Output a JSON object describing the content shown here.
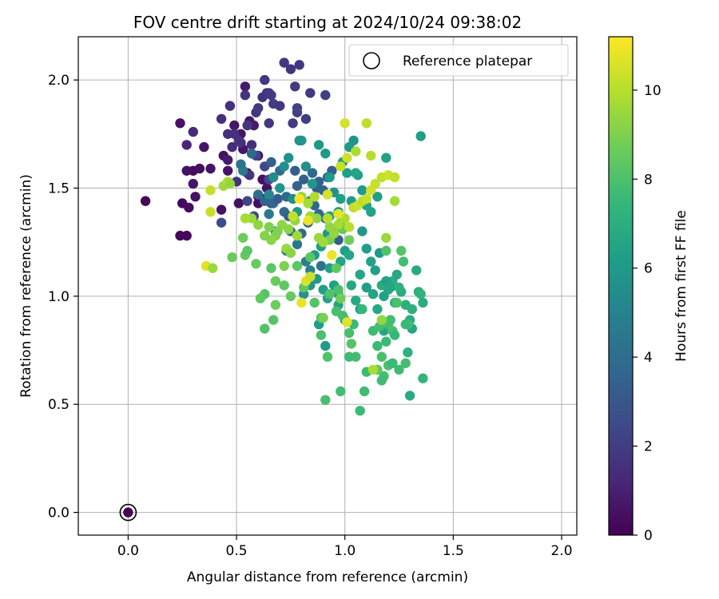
{
  "chart_data": {
    "type": "scatter",
    "title": "FOV centre drift starting at 2024/10/24 09:38:02",
    "xlabel": "Angular distance from reference (arcmin)",
    "ylabel": "Rotation from reference (arcmin)",
    "xlim": [
      -0.23,
      2.07
    ],
    "ylim": [
      -0.105,
      2.2
    ],
    "x_ticks": [
      0.0,
      0.5,
      1.0,
      1.5,
      2.0
    ],
    "y_ticks": [
      0.0,
      0.5,
      1.0,
      1.5,
      2.0
    ],
    "x_tick_labels": [
      "0.0",
      "0.5",
      "1.0",
      "1.5",
      "2.0"
    ],
    "y_tick_labels": [
      "0.0",
      "0.5",
      "1.0",
      "1.5",
      "2.0"
    ],
    "grid": true,
    "legend": {
      "position": "top-right",
      "entries": [
        "Reference platepar"
      ]
    },
    "reference_point": {
      "x": 0.0,
      "y": 0.0,
      "label": "Reference platepar"
    },
    "colorbar": {
      "label": "Hours from first FF file",
      "min": 0,
      "max": 11.2,
      "ticks": [
        0,
        2,
        4,
        6,
        8,
        10
      ],
      "tick_labels": [
        "0",
        "2",
        "4",
        "6",
        "8",
        "10"
      ],
      "colormap": "viridis"
    },
    "points_xyh": [
      [
        0.08,
        1.44,
        0.2
      ],
      [
        0.24,
        1.28,
        0.2
      ],
      [
        0.27,
        1.28,
        0.3
      ],
      [
        0.25,
        1.43,
        0.3
      ],
      [
        0.28,
        1.41,
        0.4
      ],
      [
        0.24,
        1.8,
        0.5
      ],
      [
        0.3,
        1.58,
        0.3
      ],
      [
        0.33,
        1.59,
        0.4
      ],
      [
        0.27,
        1.58,
        0.5
      ],
      [
        0.35,
        1.69,
        0.6
      ],
      [
        0.3,
        1.52,
        0.7
      ],
      [
        0.31,
        1.46,
        0.5
      ],
      [
        0.38,
        1.59,
        0.6
      ],
      [
        0.43,
        1.4,
        0.5
      ],
      [
        0.44,
        1.65,
        0.5
      ],
      [
        0.46,
        1.58,
        0.6
      ],
      [
        0.46,
        1.63,
        0.8
      ],
      [
        0.49,
        1.79,
        0.7
      ],
      [
        0.52,
        1.75,
        0.6
      ],
      [
        0.51,
        1.43,
        0.5
      ],
      [
        0.53,
        1.68,
        0.6
      ],
      [
        0.55,
        1.57,
        0.5
      ],
      [
        0.56,
        1.81,
        0.7
      ],
      [
        0.58,
        1.79,
        0.8
      ],
      [
        0.6,
        1.46,
        0.5
      ],
      [
        0.62,
        1.45,
        0.6
      ],
      [
        0.62,
        1.54,
        0.5
      ],
      [
        0.64,
        1.5,
        0.6
      ],
      [
        0.6,
        1.65,
        0.5
      ],
      [
        0.54,
        1.97,
        0.8
      ],
      [
        0.6,
        1.43,
        0.4
      ],
      [
        0.27,
        1.7,
        1.2
      ],
      [
        0.3,
        1.76,
        1.3
      ],
      [
        0.43,
        1.82,
        1.5
      ],
      [
        0.47,
        1.88,
        1.6
      ],
      [
        0.46,
        1.75,
        1.5
      ],
      [
        0.48,
        1.69,
        1.4
      ],
      [
        0.52,
        1.71,
        1.5
      ],
      [
        0.54,
        1.93,
        1.7
      ],
      [
        0.55,
        1.79,
        1.8
      ],
      [
        0.57,
        1.7,
        1.5
      ],
      [
        0.59,
        1.85,
        1.8
      ],
      [
        0.6,
        1.87,
        1.9
      ],
      [
        0.62,
        1.92,
        1.7
      ],
      [
        0.64,
        1.94,
        1.6
      ],
      [
        0.65,
        1.8,
        1.8
      ],
      [
        0.66,
        1.93,
        2.0
      ],
      [
        0.67,
        1.89,
        2.0
      ],
      [
        0.7,
        1.88,
        1.8
      ],
      [
        0.72,
        2.08,
        1.8
      ],
      [
        0.75,
        2.05,
        1.7
      ],
      [
        0.77,
        1.97,
        1.9
      ],
      [
        0.79,
        2.07,
        1.8
      ],
      [
        0.76,
        1.8,
        2.0
      ],
      [
        0.78,
        1.85,
        2.1
      ],
      [
        0.78,
        1.87,
        2.2
      ],
      [
        0.82,
        1.82,
        2.0
      ],
      [
        0.84,
        1.94,
        1.9
      ],
      [
        0.91,
        1.93,
        2.1
      ],
      [
        0.65,
        1.94,
        1.9
      ],
      [
        0.63,
        2.0,
        1.8
      ],
      [
        0.51,
        1.72,
        1.6
      ],
      [
        0.49,
        1.75,
        1.5
      ],
      [
        0.56,
        1.56,
        1.8
      ],
      [
        0.59,
        1.65,
        2.3
      ],
      [
        0.63,
        1.6,
        2.4
      ],
      [
        0.65,
        1.54,
        2.5
      ],
      [
        0.43,
        1.34,
        2.6
      ],
      [
        0.5,
        1.53,
        1.7
      ],
      [
        0.55,
        1.44,
        2.3
      ],
      [
        0.58,
        1.37,
        2.4
      ],
      [
        0.66,
        1.43,
        2.2
      ],
      [
        0.52,
        1.61,
        4.2
      ],
      [
        0.53,
        1.58,
        4.5
      ],
      [
        0.57,
        1.66,
        3.8
      ],
      [
        0.6,
        1.47,
        4.0
      ],
      [
        0.63,
        1.44,
        3.5
      ],
      [
        0.65,
        1.38,
        4.6
      ],
      [
        0.67,
        1.43,
        3.7
      ],
      [
        0.69,
        1.45,
        3.2
      ],
      [
        0.72,
        1.39,
        3.9
      ],
      [
        0.74,
        1.37,
        3.4
      ],
      [
        0.73,
        1.46,
        3.8
      ],
      [
        0.77,
        1.58,
        3.3
      ],
      [
        0.78,
        1.51,
        3.5
      ],
      [
        0.81,
        1.54,
        3.4
      ],
      [
        0.84,
        1.44,
        3.6
      ],
      [
        0.85,
        1.57,
        3.8
      ],
      [
        0.87,
        1.5,
        3.3
      ],
      [
        0.88,
        1.53,
        3.5
      ],
      [
        0.9,
        1.49,
        3.5
      ],
      [
        0.92,
        1.55,
        3.6
      ],
      [
        0.94,
        1.58,
        3.4
      ],
      [
        0.7,
        1.58,
        3.9
      ],
      [
        0.75,
        1.3,
        3.8
      ],
      [
        0.8,
        1.29,
        3.7
      ],
      [
        0.83,
        1.34,
        3.6
      ],
      [
        0.86,
        1.42,
        3.8
      ],
      [
        0.88,
        1.38,
        3.9
      ],
      [
        0.91,
        1.36,
        3.7
      ],
      [
        0.95,
        1.31,
        3.8
      ],
      [
        0.97,
        1.26,
        3.3
      ],
      [
        0.73,
        1.21,
        4.2
      ],
      [
        0.78,
        1.24,
        4.5
      ],
      [
        0.82,
        1.16,
        4.8
      ],
      [
        0.84,
        1.12,
        4.9
      ],
      [
        0.89,
        1.14,
        4.3
      ],
      [
        0.66,
        1.62,
        3.4
      ],
      [
        0.68,
        1.3,
        4.5
      ],
      [
        0.65,
        1.47,
        5.2
      ],
      [
        0.67,
        1.55,
        5.4
      ],
      [
        0.7,
        1.5,
        5.8
      ],
      [
        0.72,
        1.6,
        5.6
      ],
      [
        0.76,
        1.45,
        5.5
      ],
      [
        0.78,
        1.39,
        5.9
      ],
      [
        0.8,
        1.72,
        6.0
      ],
      [
        0.82,
        1.6,
        5.6
      ],
      [
        0.85,
        1.52,
        5.8
      ],
      [
        0.88,
        1.7,
        5.9
      ],
      [
        0.91,
        1.66,
        6.0
      ],
      [
        0.93,
        1.55,
        6.1
      ],
      [
        0.95,
        1.48,
        5.7
      ],
      [
        0.98,
        1.45,
        6.2
      ],
      [
        0.99,
        1.62,
        6.1
      ],
      [
        1.01,
        1.57,
        6.3
      ],
      [
        1.02,
        1.69,
        6.0
      ],
      [
        1.04,
        1.72,
        5.8
      ],
      [
        1.06,
        1.56,
        6.2
      ],
      [
        1.08,
        1.49,
        6.0
      ],
      [
        1.1,
        1.42,
        6.4
      ],
      [
        1.12,
        1.39,
        6.5
      ],
      [
        1.15,
        1.46,
        6.3
      ],
      [
        1.05,
        1.57,
        6.5
      ],
      [
        1.03,
        1.44,
        6.1
      ],
      [
        0.97,
        1.39,
        6.2
      ],
      [
        0.93,
        1.37,
        6.4
      ],
      [
        0.92,
        1.29,
        5.9
      ],
      [
        0.89,
        1.23,
        6.2
      ],
      [
        0.86,
        1.19,
        6.1
      ],
      [
        0.84,
        1.05,
        5.9
      ],
      [
        0.87,
        1.08,
        6.0
      ],
      [
        0.9,
        1.03,
        6.3
      ],
      [
        0.92,
        0.99,
        6.4
      ],
      [
        0.95,
        1.05,
        6.2
      ],
      [
        0.97,
        1.01,
        6.0
      ],
      [
        0.98,
        1.16,
        6.5
      ],
      [
        1.0,
        1.21,
        6.3
      ],
      [
        1.02,
        1.19,
        6.6
      ],
      [
        1.03,
        1.05,
        6.7
      ],
      [
        1.05,
        0.98,
        6.8
      ],
      [
        1.07,
        1.1,
        6.6
      ],
      [
        1.08,
        1.3,
        5.9
      ],
      [
        1.1,
        1.22,
        6.2
      ],
      [
        1.12,
        1.16,
        6.4
      ],
      [
        1.13,
        1.01,
        6.5
      ],
      [
        1.15,
        0.94,
        6.7
      ],
      [
        1.17,
        1.05,
        6.9
      ],
      [
        1.18,
        0.84,
        6.6
      ],
      [
        1.2,
        1.03,
        6.8
      ],
      [
        1.22,
        1.07,
        7.0
      ],
      [
        1.24,
        1.1,
        6.7
      ],
      [
        1.26,
        1.02,
        6.8
      ],
      [
        1.28,
        0.96,
        7.0
      ],
      [
        1.3,
        0.89,
        6.9
      ],
      [
        1.31,
        0.94,
        7.1
      ],
      [
        1.33,
        1.12,
        6.8
      ],
      [
        1.34,
        1.02,
        7.0
      ],
      [
        1.35,
        1.01,
        7.2
      ],
      [
        1.36,
        0.97,
        6.9
      ],
      [
        1.31,
        0.85,
        6.6
      ],
      [
        1.29,
        0.74,
        7.1
      ],
      [
        1.3,
        0.54,
        6.8
      ],
      [
        1.36,
        0.62,
        7.3
      ],
      [
        1.35,
        1.74,
        6.2
      ],
      [
        1.19,
        1.64,
        6.4
      ],
      [
        0.91,
        0.77,
        6.1
      ],
      [
        0.88,
        0.87,
        6.2
      ],
      [
        0.93,
        1.13,
        6.3
      ],
      [
        0.81,
        1.01,
        5.7
      ],
      [
        0.79,
        1.72,
        5.8
      ],
      [
        0.74,
        1.64,
        5.7
      ],
      [
        0.97,
        0.96,
        6.5
      ],
      [
        1.0,
        0.89,
        6.6
      ],
      [
        1.16,
        1.2,
        6.0
      ],
      [
        1.14,
        1.12,
        6.3
      ],
      [
        1.19,
        1.07,
        6.4
      ],
      [
        1.21,
        1.04,
        6.6
      ],
      [
        1.23,
        0.97,
        7.0
      ],
      [
        1.25,
        1.04,
        7.1
      ],
      [
        1.18,
        1.0,
        6.4
      ],
      [
        1.1,
        1.04,
        6.3
      ],
      [
        1.07,
        0.94,
        6.2
      ],
      [
        0.99,
        0.91,
        7.8
      ],
      [
        1.02,
        0.83,
        7.9
      ],
      [
        1.04,
        0.87,
        7.6
      ],
      [
        1.08,
        0.94,
        7.5
      ],
      [
        1.13,
        0.84,
        7.7
      ],
      [
        1.16,
        0.86,
        7.8
      ],
      [
        1.19,
        0.79,
        7.6
      ],
      [
        1.2,
        0.87,
        7.8
      ],
      [
        1.22,
        0.84,
        7.9
      ],
      [
        1.23,
        0.82,
        7.5
      ],
      [
        1.15,
        0.77,
        7.6
      ],
      [
        1.17,
        0.72,
        7.9
      ],
      [
        1.2,
        0.68,
        8.0
      ],
      [
        1.18,
        0.63,
        7.8
      ],
      [
        1.17,
        0.61,
        7.7
      ],
      [
        1.22,
        0.69,
        7.6
      ],
      [
        1.25,
        0.66,
        7.7
      ],
      [
        1.28,
        0.69,
        7.8
      ],
      [
        1.29,
        0.87,
        7.9
      ],
      [
        1.1,
        0.65,
        7.6
      ],
      [
        1.05,
        0.72,
        7.8
      ],
      [
        1.02,
        0.72,
        7.7
      ],
      [
        0.96,
        0.93,
        7.9
      ],
      [
        0.97,
        1.03,
        8.0
      ],
      [
        0.93,
        1.01,
        8.1
      ],
      [
        0.89,
        0.9,
        8.2
      ],
      [
        0.89,
        0.82,
        8.0
      ],
      [
        0.92,
        0.72,
        8.1
      ],
      [
        0.86,
        0.97,
        8.2
      ],
      [
        0.84,
        1.18,
        8.3
      ],
      [
        0.81,
        1.04,
        8.4
      ],
      [
        0.78,
        1.14,
        8.3
      ],
      [
        0.75,
        1.0,
        8.5
      ],
      [
        0.72,
        1.05,
        8.4
      ],
      [
        0.68,
        1.07,
        8.6
      ],
      [
        0.68,
        0.96,
        8.7
      ],
      [
        0.66,
        1.13,
        8.3
      ],
      [
        0.63,
        1.01,
        8.2
      ],
      [
        0.61,
        0.99,
        8.4
      ],
      [
        0.59,
        1.15,
        8.6
      ],
      [
        0.54,
        1.19,
        8.5
      ],
      [
        0.53,
        1.27,
        8.7
      ],
      [
        0.48,
        1.18,
        8.6
      ],
      [
        0.55,
        1.21,
        8.3
      ],
      [
        0.63,
        0.85,
        8.1
      ],
      [
        0.67,
        0.89,
        8.2
      ],
      [
        0.91,
        0.52,
        7.9
      ],
      [
        0.98,
        0.56,
        7.8
      ],
      [
        1.07,
        0.47,
        7.6
      ],
      [
        1.09,
        0.56,
        7.7
      ],
      [
        1.15,
        0.66,
        8.4
      ],
      [
        1.21,
        0.89,
        7.8
      ],
      [
        1.28,
        0.87,
        7.5
      ],
      [
        1.24,
        0.97,
        8.0
      ],
      [
        1.26,
        1.21,
        8.2
      ],
      [
        1.19,
        1.21,
        8.1
      ],
      [
        1.27,
        1.16,
        7.8
      ],
      [
        0.99,
        1.31,
        8.5
      ],
      [
        0.98,
        1.34,
        8.6
      ],
      [
        1.02,
        1.26,
        8.8
      ],
      [
        0.93,
        1.26,
        8.9
      ],
      [
        0.96,
        1.13,
        8.4
      ],
      [
        1.03,
        0.78,
        8.2
      ],
      [
        0.98,
        0.99,
        8.7
      ],
      [
        0.65,
        1.32,
        9.0
      ],
      [
        0.68,
        1.28,
        9.1
      ],
      [
        0.71,
        1.33,
        9.3
      ],
      [
        0.73,
        1.22,
        9.5
      ],
      [
        0.75,
        1.2,
        9.2
      ],
      [
        0.78,
        1.28,
        9.6
      ],
      [
        0.8,
        1.46,
        9.4
      ],
      [
        0.83,
        1.43,
        9.7
      ],
      [
        0.86,
        1.46,
        9.9
      ],
      [
        0.88,
        1.27,
        9.5
      ],
      [
        0.9,
        1.25,
        9.6
      ],
      [
        0.93,
        1.32,
        9.3
      ],
      [
        0.95,
        1.29,
        9.4
      ],
      [
        0.97,
        1.33,
        9.7
      ],
      [
        1.0,
        1.36,
        9.8
      ],
      [
        1.02,
        1.32,
        10.0
      ],
      [
        1.04,
        1.41,
        10.2
      ],
      [
        1.06,
        1.42,
        10.4
      ],
      [
        1.08,
        1.44,
        10.1
      ],
      [
        1.1,
        1.45,
        10.3
      ],
      [
        1.12,
        1.49,
        10.5
      ],
      [
        1.14,
        1.52,
        10.3
      ],
      [
        1.17,
        1.55,
        10.2
      ],
      [
        1.2,
        1.56,
        10.4
      ],
      [
        1.23,
        1.55,
        10.2
      ],
      [
        1.23,
        1.44,
        9.7
      ],
      [
        1.19,
        1.27,
        9.5
      ],
      [
        1.12,
        1.65,
        10.0
      ],
      [
        1.05,
        1.67,
        9.8
      ],
      [
        1.01,
        1.64,
        10.4
      ],
      [
        1.0,
        1.8,
        10.5
      ],
      [
        1.1,
        1.8,
        10.1
      ],
      [
        0.98,
        1.6,
        10.3
      ],
      [
        0.92,
        1.36,
        10.0
      ],
      [
        0.87,
        1.36,
        9.3
      ],
      [
        0.84,
        1.37,
        9.6
      ],
      [
        0.77,
        1.35,
        9.4
      ],
      [
        0.74,
        1.31,
        9.2
      ],
      [
        0.69,
        1.3,
        9.0
      ],
      [
        0.66,
        1.26,
        9.2
      ],
      [
        0.63,
        1.28,
        9.1
      ],
      [
        0.6,
        1.33,
        9.3
      ],
      [
        0.57,
        1.36,
        9.5
      ],
      [
        0.54,
        1.36,
        9.7
      ],
      [
        0.44,
        1.51,
        9.6
      ],
      [
        0.46,
        1.53,
        9.8
      ],
      [
        0.47,
        1.52,
        9.4
      ],
      [
        0.38,
        1.49,
        10.2
      ],
      [
        0.38,
        1.39,
        10.3
      ],
      [
        0.36,
        1.14,
        10.7
      ],
      [
        0.39,
        1.13,
        9.5
      ],
      [
        0.8,
        0.97,
        10.8
      ],
      [
        0.82,
        1.07,
        10.6
      ],
      [
        0.84,
        1.09,
        10.4
      ],
      [
        0.94,
        1.19,
        10.9
      ],
      [
        1.01,
        0.88,
        10.7
      ],
      [
        1.13,
        0.66,
        9.8
      ],
      [
        1.17,
        0.89,
        9.4
      ],
      [
        0.9,
        0.9,
        8.9
      ],
      [
        0.76,
        1.37,
        10.2
      ],
      [
        0.79,
        1.45,
        11.1
      ],
      [
        0.83,
        1.35,
        10.9
      ],
      [
        0.92,
        1.47,
        10.5
      ],
      [
        0.97,
        1.38,
        10.8
      ],
      [
        0.72,
        1.14,
        9.0
      ]
    ]
  }
}
